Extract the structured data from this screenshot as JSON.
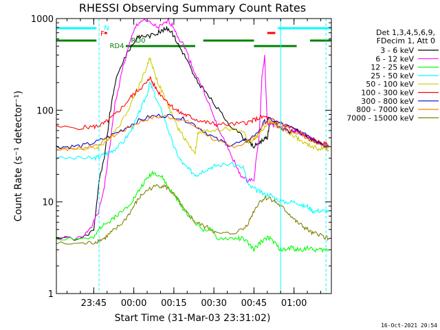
{
  "chart_data": {
    "type": "line",
    "title": "RHESSI Observing Summary Count Rates",
    "xlabel": "Start Time (31-Mar-03 23:31:02)",
    "ylabel": "Count Rate (s⁻¹ detector⁻¹)",
    "x_unit": "minutes after 23:31:02",
    "xlim": [
      0,
      103
    ],
    "ylim": [
      1,
      1000
    ],
    "y_scale": "log",
    "x_ticks": [
      {
        "x": 14,
        "label": "23:45"
      },
      {
        "x": 29,
        "label": "00:00"
      },
      {
        "x": 44,
        "label": "00:15"
      },
      {
        "x": 59,
        "label": "00:30"
      },
      {
        "x": 74,
        "label": "00:45"
      },
      {
        "x": 89,
        "label": "01:00"
      }
    ],
    "y_ticks": [
      {
        "y": 1,
        "label": "1"
      },
      {
        "y": 10,
        "label": "10"
      },
      {
        "y": 100,
        "label": "100"
      },
      {
        "y": 1000,
        "label": "1000"
      }
    ],
    "legend_header": [
      "Det 1,3,4,5,6,9,",
      "FDecim 1, Att 0"
    ],
    "legend_position": "right",
    "date_stamp": "16-Oct-2021 20:54",
    "series": [
      {
        "name": "3 - 6 keV",
        "color": "#000000",
        "x": [
          0,
          10,
          14,
          16,
          18,
          20,
          22,
          25,
          28,
          30,
          32,
          35,
          38,
          40,
          42,
          44,
          46,
          48,
          50,
          52,
          55,
          58,
          62,
          66,
          70,
          72,
          74,
          76,
          78,
          79,
          80,
          82,
          85,
          88,
          90,
          92,
          94,
          96,
          98,
          100,
          102
        ],
        "y": [
          4,
          4,
          5,
          17,
          30,
          90,
          200,
          350,
          500,
          600,
          650,
          650,
          700,
          750,
          780,
          650,
          500,
          400,
          300,
          220,
          170,
          130,
          90,
          65,
          50,
          45,
          40,
          45,
          48,
          50,
          75,
          70,
          62,
          58,
          60,
          55,
          52,
          48,
          45,
          42,
          40
        ]
      },
      {
        "name": "6 - 12 keV",
        "color": "#ff00ff",
        "x": [
          0,
          10,
          12,
          14,
          16,
          18,
          20,
          22,
          25,
          28,
          30,
          32,
          35,
          38,
          40,
          42,
          44,
          46,
          48,
          50,
          52,
          55,
          58,
          60,
          64,
          66,
          68,
          70,
          72,
          74,
          76,
          77,
          78,
          79,
          80,
          82,
          85,
          88,
          90,
          92,
          94,
          96,
          98,
          100,
          102
        ],
        "y": [
          4,
          4,
          5,
          6,
          8,
          15,
          40,
          120,
          300,
          600,
          850,
          950,
          900,
          800,
          850,
          950,
          800,
          600,
          500,
          350,
          250,
          170,
          100,
          70,
          40,
          30,
          22,
          18,
          17,
          18,
          55,
          230,
          380,
          70,
          72,
          68,
          62,
          58,
          60,
          55,
          52,
          48,
          45,
          42,
          40
        ]
      },
      {
        "name": "12 - 25 keV",
        "color": "#00ff00",
        "x": [
          0,
          10,
          14,
          16,
          18,
          20,
          22,
          25,
          28,
          30,
          32,
          34,
          36,
          38,
          40,
          42,
          44,
          46,
          48,
          50,
          52,
          55,
          58,
          60,
          65,
          68,
          70,
          72,
          74,
          76,
          78,
          80,
          82,
          84,
          86,
          88,
          90,
          92,
          94,
          96,
          98,
          100,
          102
        ],
        "y": [
          4,
          4,
          4,
          5,
          6,
          6,
          7,
          8,
          10,
          12,
          15,
          18,
          21,
          20,
          18,
          14,
          12,
          10,
          8,
          7,
          6,
          5,
          5,
          4,
          4,
          4,
          4,
          3.5,
          3,
          3.5,
          4,
          4,
          3.5,
          3,
          3,
          3.2,
          3,
          3,
          3.2,
          3,
          3,
          3,
          3
        ]
      },
      {
        "name": "25 - 50 keV",
        "color": "#00ffff",
        "x": [
          0,
          10,
          14,
          16,
          18,
          20,
          22,
          25,
          28,
          30,
          32,
          34,
          35,
          36,
          38,
          40,
          42,
          44,
          46,
          48,
          50,
          52,
          53,
          55,
          58,
          60,
          65,
          70,
          72,
          74,
          76,
          78,
          80,
          82,
          85,
          88,
          90,
          92,
          94,
          96,
          98,
          100,
          102
        ],
        "y": [
          30,
          30,
          30,
          31,
          33,
          35,
          38,
          45,
          60,
          80,
          110,
          150,
          200,
          170,
          120,
          90,
          60,
          40,
          30,
          25,
          22,
          20,
          20,
          22,
          24,
          25,
          26,
          24,
          15,
          14,
          13,
          12,
          12,
          11,
          10,
          10,
          10,
          9,
          9,
          8,
          8,
          8,
          8
        ]
      },
      {
        "name": "50 - 100 keV",
        "color": "#cccc00",
        "x": [
          0,
          10,
          14,
          16,
          18,
          20,
          22,
          25,
          28,
          30,
          32,
          34,
          35,
          36,
          38,
          40,
          42,
          44,
          46,
          48,
          50,
          52,
          53,
          55,
          58,
          60,
          65,
          70,
          72,
          74,
          76,
          78,
          80,
          82,
          85,
          88,
          90,
          92,
          94,
          96,
          98,
          100,
          102
        ],
        "y": [
          38,
          38,
          38,
          40,
          45,
          50,
          60,
          80,
          120,
          160,
          220,
          300,
          380,
          300,
          200,
          150,
          110,
          80,
          60,
          50,
          40,
          35,
          55,
          58,
          60,
          62,
          62,
          60,
          45,
          48,
          55,
          65,
          75,
          70,
          60,
          55,
          50,
          45,
          42,
          40,
          38,
          38,
          37
        ]
      },
      {
        "name": "100 - 300 keV",
        "color": "#ff0000",
        "x": [
          0,
          10,
          14,
          16,
          18,
          20,
          22,
          25,
          28,
          30,
          32,
          34,
          35,
          36,
          38,
          40,
          42,
          44,
          46,
          48,
          50,
          52,
          55,
          58,
          60,
          65,
          70,
          72,
          74,
          76,
          78,
          80,
          82,
          85,
          88,
          90,
          92,
          94,
          96,
          98,
          100,
          102
        ],
        "y": [
          65,
          65,
          66,
          68,
          72,
          80,
          90,
          110,
          140,
          160,
          180,
          200,
          230,
          200,
          160,
          140,
          120,
          105,
          95,
          90,
          85,
          80,
          75,
          72,
          70,
          70,
          72,
          74,
          78,
          82,
          85,
          80,
          75,
          70,
          65,
          60,
          55,
          50,
          47,
          45,
          43,
          42
        ]
      },
      {
        "name": "300 - 800 keV",
        "color": "#0000cc",
        "x": [
          0,
          5,
          10,
          15,
          20,
          25,
          30,
          35,
          40,
          45,
          50,
          55,
          60,
          65,
          70,
          75,
          78,
          80,
          85,
          90,
          95,
          100,
          102
        ],
        "y": [
          40,
          40,
          41,
          45,
          52,
          62,
          75,
          85,
          88,
          85,
          75,
          60,
          48,
          42,
          45,
          55,
          75,
          80,
          70,
          60,
          50,
          43,
          40
        ]
      },
      {
        "name": "800 - 7000 keV",
        "color": "#ff8000",
        "x": [
          0,
          5,
          10,
          15,
          20,
          25,
          30,
          35,
          40,
          45,
          50,
          55,
          60,
          65,
          70,
          75,
          78,
          80,
          85,
          90,
          95,
          100,
          102
        ],
        "y": [
          38,
          38,
          39,
          42,
          50,
          60,
          72,
          82,
          86,
          82,
          72,
          58,
          46,
          40,
          43,
          52,
          72,
          78,
          68,
          58,
          48,
          42,
          39
        ]
      },
      {
        "name": "7000 - 15000 keV",
        "color": "#808000",
        "x": [
          0,
          10,
          14,
          16,
          18,
          20,
          22,
          25,
          28,
          30,
          32,
          35,
          38,
          40,
          42,
          44,
          46,
          48,
          50,
          52,
          55,
          58,
          60,
          65,
          70,
          72,
          74,
          76,
          78,
          80,
          82,
          84,
          86,
          88,
          90,
          92,
          94,
          96,
          98,
          100,
          102
        ],
        "y": [
          3.5,
          3.5,
          3.6,
          3.8,
          4,
          4.5,
          5,
          6,
          8,
          10,
          12,
          14,
          15,
          15,
          14,
          12,
          10,
          8,
          7,
          6,
          5.5,
          5,
          4.5,
          4.5,
          5,
          6,
          8,
          10,
          11,
          11,
          10,
          9,
          8,
          7,
          6,
          5.5,
          5,
          4.5,
          4.5,
          4.2,
          4
        ]
      }
    ],
    "flag_bars": [
      {
        "name": "N",
        "color": "#00ffff",
        "level": 1,
        "spans": [
          [
            0,
            15
          ],
          [
            83,
            103
          ]
        ]
      },
      {
        "name": "F",
        "color": "#ff0000",
        "level": 2,
        "spans": [
          [
            18,
            19
          ],
          [
            79,
            82
          ]
        ]
      },
      {
        "name": "RD4",
        "color": "#008000",
        "level": 3,
        "spans": [
          [
            0,
            15
          ],
          [
            55,
            74
          ],
          [
            95,
            103
          ]
        ]
      },
      {
        "name": "RD0",
        "color": "#008000",
        "level": 4,
        "spans": [
          [
            26,
            52
          ],
          [
            74,
            90
          ]
        ]
      }
    ],
    "markers": {
      "cyan_dashed": [
        16,
        101
      ],
      "cyan_solid": [
        0,
        84
      ]
    }
  }
}
